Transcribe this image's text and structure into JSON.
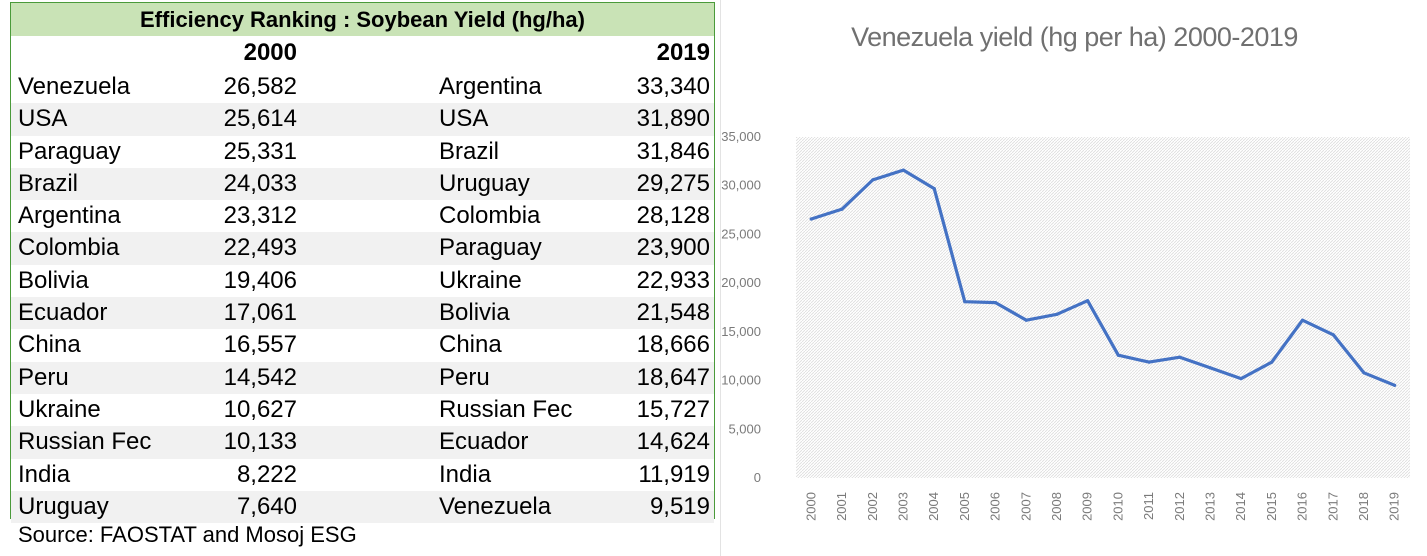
{
  "table": {
    "title": "Efficiency Ranking : Soybean Yield (hg/ha)",
    "col_2000": "2000",
    "col_2019": "2019",
    "rows": [
      {
        "country_2000": "Venezuela",
        "value_2000": "26,582",
        "country_2019": "Argentina",
        "value_2019": "33,340"
      },
      {
        "country_2000": "USA",
        "value_2000": "25,614",
        "country_2019": "USA",
        "value_2019": "31,890"
      },
      {
        "country_2000": "Paraguay",
        "value_2000": "25,331",
        "country_2019": "Brazil",
        "value_2019": "31,846"
      },
      {
        "country_2000": "Brazil",
        "value_2000": "24,033",
        "country_2019": "Uruguay",
        "value_2019": "29,275"
      },
      {
        "country_2000": "Argentina",
        "value_2000": "23,312",
        "country_2019": "Colombia",
        "value_2019": "28,128"
      },
      {
        "country_2000": "Colombia",
        "value_2000": "22,493",
        "country_2019": "Paraguay",
        "value_2019": "23,900"
      },
      {
        "country_2000": "Bolivia",
        "value_2000": "19,406",
        "country_2019": "Ukraine",
        "value_2019": "22,933"
      },
      {
        "country_2000": "Ecuador",
        "value_2000": "17,061",
        "country_2019": "Bolivia",
        "value_2019": "21,548"
      },
      {
        "country_2000": "China",
        "value_2000": "16,557",
        "country_2019": "China",
        "value_2019": "18,666"
      },
      {
        "country_2000": "Peru",
        "value_2000": "14,542",
        "country_2019": "Peru",
        "value_2019": "18,647"
      },
      {
        "country_2000": "Ukraine",
        "value_2000": "10,627",
        "country_2019": "Russian Fec",
        "value_2019": "15,727"
      },
      {
        "country_2000": "Russian Fec",
        "value_2000": "10,133",
        "country_2019": "Ecuador",
        "value_2019": "14,624"
      },
      {
        "country_2000": "India",
        "value_2000": "8,222",
        "country_2019": "India",
        "value_2019": "11,919"
      },
      {
        "country_2000": "Uruguay",
        "value_2000": "7,640",
        "country_2019": "Venezuela",
        "value_2019": "9,519"
      }
    ],
    "source": "Source: FAOSTAT and Mosoj ESG",
    "header_color": "#c9e3b6",
    "border_color": "#4a9a3a"
  },
  "chart_data": {
    "type": "line",
    "title": "Venezuela yield  (hg per ha) 2000-2019",
    "xlabel": "",
    "ylabel": "",
    "x": [
      "2000",
      "2001",
      "2002",
      "2003",
      "2004",
      "2005",
      "2006",
      "2007",
      "2008",
      "2009",
      "2010",
      "2011",
      "2012",
      "2013",
      "2014",
      "2015",
      "2016",
      "2017",
      "2018",
      "2019"
    ],
    "series": [
      {
        "values": [
          26582,
          27600,
          30600,
          31600,
          29700,
          18100,
          18000,
          16200,
          16800,
          18200,
          12600,
          11900,
          12400,
          11300,
          10200,
          11900,
          16200,
          14700,
          10800,
          9519
        ]
      }
    ],
    "y_ticks": [
      "0",
      "5,000",
      "10,000",
      "15,000",
      "20,000",
      "25,000",
      "30,000",
      "35,000"
    ],
    "ylim": [
      0,
      35000
    ],
    "line_color": "#4472c4",
    "grid": "hatched",
    "legend": "none"
  }
}
